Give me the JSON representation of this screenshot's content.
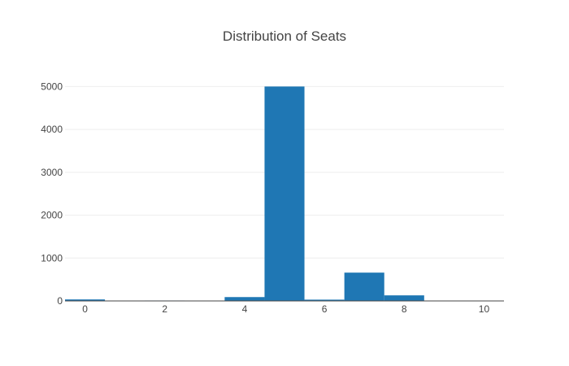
{
  "chart_data": {
    "type": "bar",
    "title": "Distribution of Seats",
    "xlabel": "",
    "ylabel": "",
    "bin_width": 1,
    "x": [
      0,
      1,
      2,
      3,
      4,
      5,
      6,
      7,
      8,
      9,
      10
    ],
    "values": [
      35,
      0,
      10,
      0,
      90,
      5000,
      30,
      660,
      130,
      0,
      5
    ],
    "xlim": [
      -0.5,
      10.5
    ],
    "ylim": [
      0,
      5500
    ],
    "xticks": [
      "0",
      "2",
      "4",
      "6",
      "8",
      "10"
    ],
    "yticks": [
      "0",
      "1000",
      "2000",
      "3000",
      "4000",
      "5000"
    ],
    "bar_color": "#1f77b4",
    "grid": true,
    "legend": false
  }
}
